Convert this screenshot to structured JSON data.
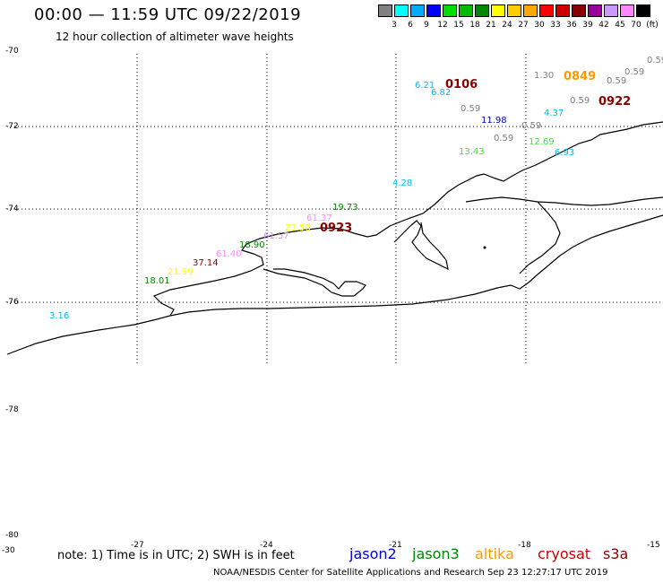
{
  "title": "00:00 — 11:59 UTC 09/22/2019",
  "subtitle": "12 hour collection of altimeter wave heights",
  "legend": {
    "colors": [
      "#808080",
      "#00ffff",
      "#00aaff",
      "#0000ff",
      "#00dd00",
      "#00bb00",
      "#008800",
      "#ffff00",
      "#ffcc00",
      "#ffaa00",
      "#ff0000",
      "#cc0000",
      "#880000",
      "#990099",
      "#cc99ff",
      "#ff88ff",
      "#000000"
    ],
    "labels": [
      "3",
      "6",
      "9",
      "12",
      "15",
      "18",
      "21",
      "24",
      "27",
      "30",
      "33",
      "36",
      "39",
      "42",
      "45",
      "70",
      "(ft)"
    ]
  },
  "lat_labels": [
    "-70",
    "-72",
    "-74",
    "-76",
    "-78",
    "-80"
  ],
  "lon_labels": [
    "-30",
    "-27",
    "-24",
    "-21",
    "-18",
    "-15"
  ],
  "wave_heights": [
    {
      "text": "6.21",
      "color": "#00bbee"
    },
    {
      "text": "6.82",
      "color": "#00bbee"
    },
    {
      "text": "0.59",
      "color": "#808080"
    },
    {
      "text": "11.98",
      "color": "#0000cc"
    },
    {
      "text": "0.59",
      "color": "#808080"
    },
    {
      "text": "0.59",
      "color": "#808080"
    },
    {
      "text": "13.43",
      "color": "#44dd44"
    },
    {
      "text": "12.69",
      "color": "#44dd44"
    },
    {
      "text": "6.93",
      "color": "#00bbee"
    },
    {
      "text": "4.37",
      "color": "#00bbee"
    },
    {
      "text": "4.28",
      "color": "#00bbee"
    },
    {
      "text": "1.30",
      "color": "#808080"
    },
    {
      "text": "0.59",
      "color": "#808080"
    },
    {
      "text": "0.59",
      "color": "#808080"
    },
    {
      "text": "0.59",
      "color": "#808080"
    },
    {
      "text": "0.59",
      "color": "#808080"
    },
    {
      "text": "19.73",
      "color": "#008800"
    },
    {
      "text": "61.37",
      "color": "#ff88ff"
    },
    {
      "text": "23.56",
      "color": "#ffff00"
    },
    {
      "text": "61.57",
      "color": "#cc99ff"
    },
    {
      "text": "18.90",
      "color": "#008800"
    },
    {
      "text": "61.40",
      "color": "#ff88ff"
    },
    {
      "text": "37.14",
      "color": "#880000"
    },
    {
      "text": "21.99",
      "color": "#ffff00"
    },
    {
      "text": "18.01",
      "color": "#008800"
    },
    {
      "text": "3.16",
      "color": "#00bbee"
    }
  ],
  "pass_times": [
    {
      "text": "0106",
      "color": "#880000"
    },
    {
      "text": "0849",
      "color": "#ff9900"
    },
    {
      "text": "0922",
      "color": "#880000"
    },
    {
      "text": "0923",
      "color": "#880000"
    }
  ],
  "note": "note: 1) Time is in UTC; 2) SWH is in feet",
  "satellites": [
    {
      "name": "jason2",
      "color": "#0000cc"
    },
    {
      "name": "jason3",
      "color": "#008800"
    },
    {
      "name": "altika",
      "color": "#ff9900"
    },
    {
      "name": "cryosat",
      "color": "#cc0000"
    },
    {
      "name": "s3a",
      "color": "#880000"
    }
  ],
  "credit": "NOAA/NESDIS Center for Satellite Applications and Research    Sep 23 12:27:17 UTC 2019"
}
